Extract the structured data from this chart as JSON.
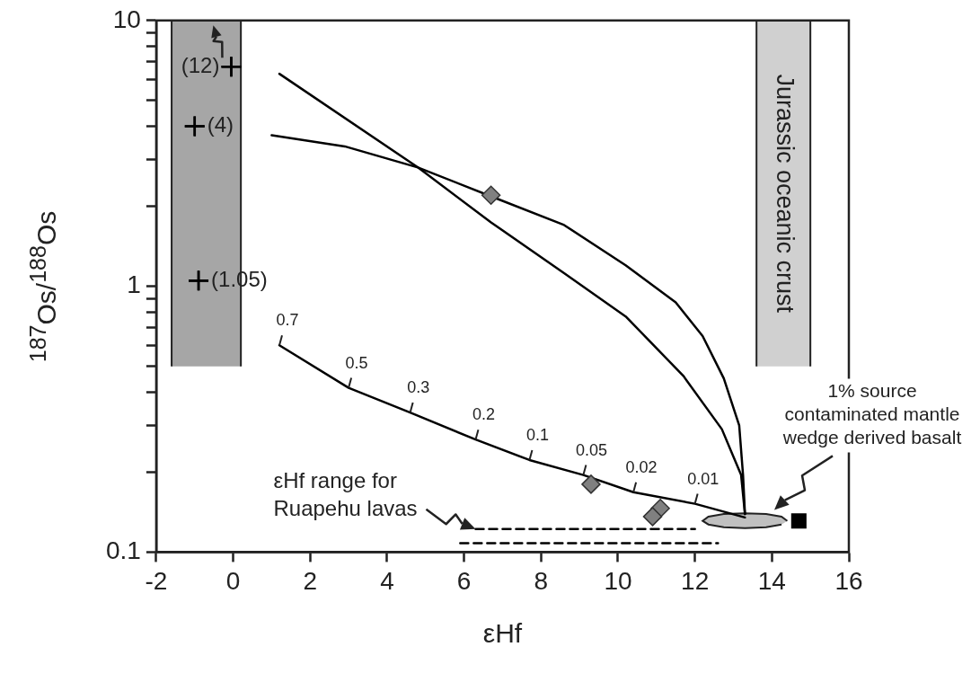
{
  "chart_data": {
    "type": "line",
    "xlabel": "εHf",
    "ylabel": "$^{187}$Os/$^{188}$Os",
    "log": "y",
    "xlim": [
      -2,
      16
    ],
    "xticks": [
      -2,
      0,
      2,
      4,
      6,
      8,
      10,
      12,
      14,
      16
    ],
    "ylim": [
      0.1,
      10
    ],
    "yticks": [
      0.1,
      {
        "value": 0.2,
        "label": null
      },
      {
        "value": 0.3,
        "label": null
      },
      {
        "value": 0.4,
        "label": null
      },
      {
        "value": 0.5,
        "label": null
      },
      {
        "value": 0.6,
        "label": null
      },
      {
        "value": 0.7,
        "label": null
      },
      {
        "value": 0.8,
        "label": null
      },
      {
        "value": 0.9,
        "label": null
      },
      1,
      {
        "value": 2,
        "label": null
      },
      {
        "value": 3,
        "label": null
      },
      {
        "value": 4,
        "label": null
      },
      {
        "value": 5,
        "label": null
      },
      {
        "value": 6,
        "label": null
      },
      {
        "value": 7,
        "label": null
      },
      {
        "value": 8,
        "label": null
      },
      {
        "value": 9,
        "label": null
      },
      10
    ],
    "series": [
      {
        "type": "area",
        "color": "#a6a6a6",
        "x": [
          -1.6,
          -1.6,
          0.2,
          0.2
        ],
        "values": [
          0.5,
          10,
          10,
          0.5
        ]
      },
      {
        "type": "area",
        "name": "Jurassic oceanic crust",
        "color": "#d0d0d0",
        "x": [
          13.6,
          13.6,
          15,
          15
        ],
        "values": [
          0.5,
          10,
          10,
          0.5
        ]
      },
      {
        "type": "area",
        "color": "#c0c0c0",
        "x": [
          14.4,
          14.25,
          13.85,
          13.3,
          12.75,
          12.35,
          12.2,
          12.35,
          12.75,
          13.3,
          13.85,
          14.25
        ],
        "values": [
          0.131,
          0.136,
          0.139,
          0.14,
          0.139,
          0.136,
          0.131,
          0.127,
          0.124,
          0.123,
          0.124,
          0.127
        ]
      },
      {
        "type": "line",
        "color": "#000000",
        "marker": "none",
        "x": [
          1.2,
          4.8,
          6.7,
          8.6,
          10.2,
          11.7,
          12.7,
          13.2,
          13.3
        ],
        "values": [
          6.3,
          2.8,
          1.74,
          1.12,
          0.77,
          0.46,
          0.29,
          0.195,
          0.139
        ]
      },
      {
        "type": "line",
        "color": "#000000",
        "marker": "none",
        "x": [
          1.0,
          2.9,
          4.8,
          6.7,
          8.6,
          10.2,
          11.5,
          12.2,
          12.75,
          13.15,
          13.25,
          13.3
        ],
        "values": [
          3.7,
          3.36,
          2.8,
          2.18,
          1.7,
          1.2,
          0.87,
          0.65,
          0.45,
          0.3,
          0.195,
          0.139
        ]
      },
      {
        "type": "line",
        "color": "#000000",
        "marker": "none",
        "x": [
          1.2,
          3.0,
          4.6,
          6.3,
          7.7,
          9.1,
          10.4,
          12.0,
          13.3
        ],
        "values": [
          0.6,
          0.415,
          0.335,
          0.265,
          0.222,
          0.195,
          0.168,
          0.152,
          0.135
        ]
      },
      {
        "type": "line",
        "color": "#000000",
        "marker": "none",
        "line_style": "dashed",
        "x": [
          6.3,
          12.0
        ],
        "values": [
          0.122,
          0.122
        ]
      },
      {
        "type": "line",
        "color": "#000000",
        "marker": "none",
        "line_style": "dashed",
        "x": [
          5.9,
          12.6
        ],
        "values": [
          0.108,
          0.108
        ]
      },
      {
        "type": "scatter",
        "color": "#000000",
        "marker": "cross",
        "x": [
          -0.05,
          -1,
          -0.9
        ],
        "values": [
          6.7,
          4,
          1.05
        ]
      },
      {
        "type": "scatter",
        "color": "#808080",
        "marker": "diamond",
        "x": [
          6.7,
          9.3,
          11.1,
          10.9
        ],
        "values": [
          2.2,
          0.18,
          0.146,
          0.136
        ]
      },
      {
        "type": "scatter",
        "color": "#000000",
        "marker": "square",
        "x": [
          14.7
        ],
        "values": [
          0.131
        ]
      }
    ],
    "annotations": [
      {
        "text": "(12)",
        "x": -0.05,
        "y": 6.7
      },
      {
        "text": "(4)",
        "x": -1,
        "y": 4
      },
      {
        "text": "(1.05)",
        "x": -0.9,
        "y": 1.05
      },
      {
        "text": "0.7",
        "x": 1.2,
        "y": 0.6
      },
      {
        "text": "0.5",
        "x": 3.0,
        "y": 0.415
      },
      {
        "text": "0.3",
        "x": 4.6,
        "y": 0.335
      },
      {
        "text": "0.2",
        "x": 6.3,
        "y": 0.265
      },
      {
        "text": "0.1",
        "x": 7.7,
        "y": 0.222
      },
      {
        "text": "0.05",
        "x": 9.1,
        "y": 0.195
      },
      {
        "text": "0.02",
        "x": 10.4,
        "y": 0.168
      },
      {
        "text": "0.01",
        "x": 12.0,
        "y": 0.152
      },
      {
        "text": "εHf range for\nRuapehu lavas",
        "x": 6.3,
        "y": 0.122
      },
      "1% source\ncontaminated mantle\nwedge derived basalt"
    ]
  }
}
